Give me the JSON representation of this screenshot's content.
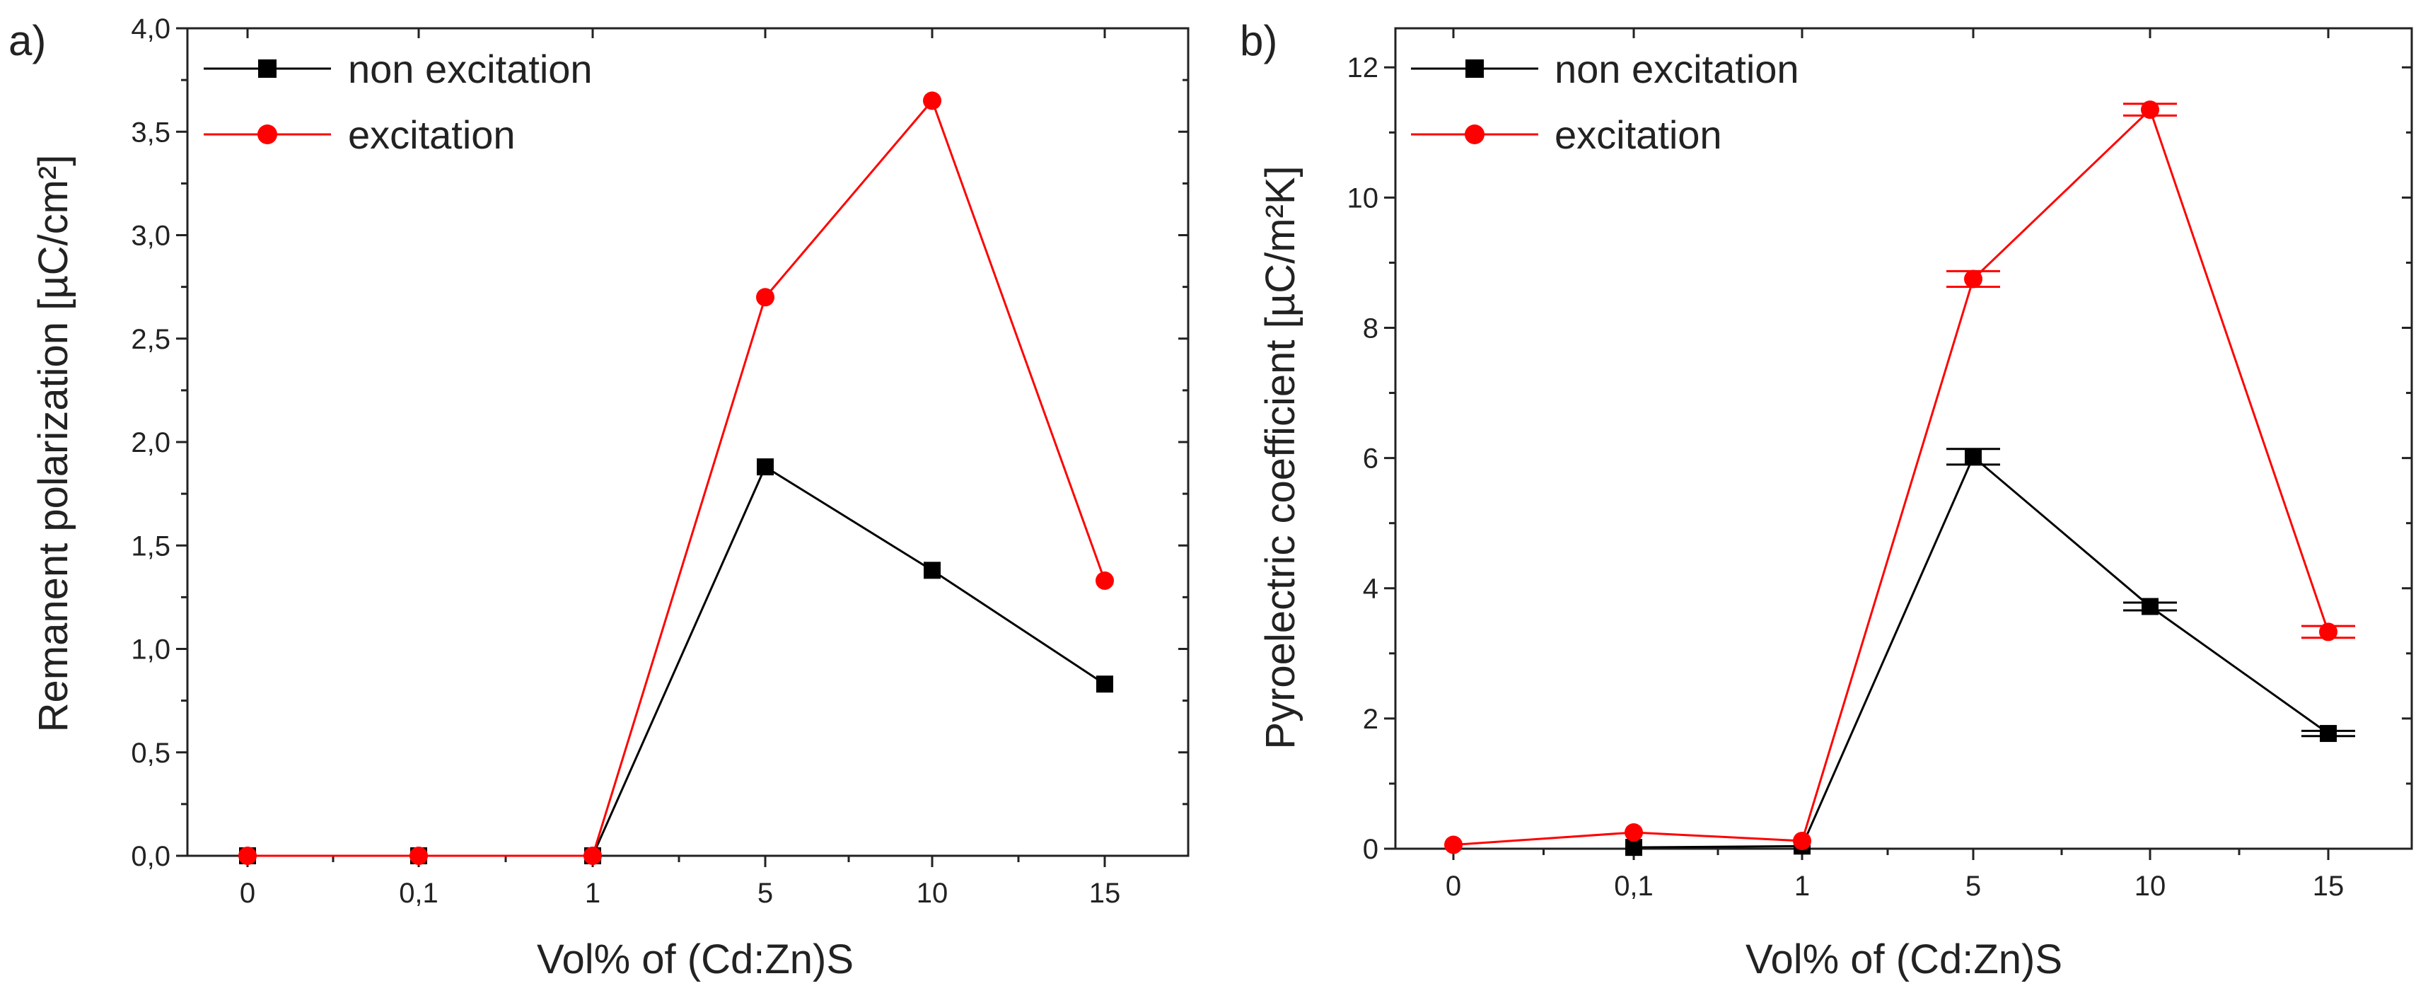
{
  "colors": {
    "non_excitation": "#000000",
    "excitation": "#ff0000",
    "axis": "#222222"
  },
  "chart_data": [
    {
      "panel_label": "a)",
      "type": "line",
      "xlabel": "Vol% of (Cd:Zn)S",
      "ylabel": "Remanent polarization [µC/cm²]",
      "categories": [
        "0",
        "0,1",
        "1",
        "5",
        "10",
        "15"
      ],
      "ylim": [
        0,
        4
      ],
      "yticks": [
        0,
        0.5,
        1.0,
        1.5,
        2.0,
        2.5,
        3.0,
        3.5,
        4.0
      ],
      "ytick_labels": [
        "0,0",
        "0,5",
        "1,0",
        "1,5",
        "2,0",
        "2,5",
        "3,0",
        "3,5",
        "4,0"
      ],
      "legend": [
        "non excitation",
        "excitation"
      ],
      "series": [
        {
          "name": "non excitation",
          "color": "#000000",
          "marker": "square",
          "values": [
            0.0,
            0.0,
            0.0,
            1.88,
            1.38,
            0.83
          ]
        },
        {
          "name": "excitation",
          "color": "#ff0000",
          "marker": "circle",
          "values": [
            0.0,
            0.0,
            0.0,
            2.7,
            3.65,
            1.33
          ]
        }
      ]
    },
    {
      "panel_label": "b)",
      "type": "line",
      "xlabel": "Vol% of (Cd:Zn)S",
      "ylabel": "Pyroelectric coefficient [µC/m²K]",
      "categories": [
        "0",
        "0,1",
        "1",
        "5",
        "10",
        "15"
      ],
      "ylim": [
        0,
        12.6
      ],
      "yticks": [
        0,
        2,
        4,
        6,
        8,
        10,
        12
      ],
      "ytick_labels": [
        "0",
        "2",
        "4",
        "6",
        "8",
        "10",
        "12"
      ],
      "legend": [
        "non excitation",
        "excitation"
      ],
      "series": [
        {
          "name": "non excitation",
          "color": "#000000",
          "marker": "square",
          "values": [
            null,
            0.02,
            0.04,
            6.02,
            3.72,
            1.77
          ],
          "errors": [
            0,
            0,
            0,
            0.12,
            0.06,
            0.04
          ]
        },
        {
          "name": "excitation",
          "color": "#ff0000",
          "marker": "circle",
          "values": [
            0.06,
            0.25,
            0.12,
            8.75,
            11.35,
            3.33
          ],
          "errors": [
            0,
            0,
            0,
            0.12,
            0.09,
            0.09
          ]
        }
      ]
    }
  ]
}
